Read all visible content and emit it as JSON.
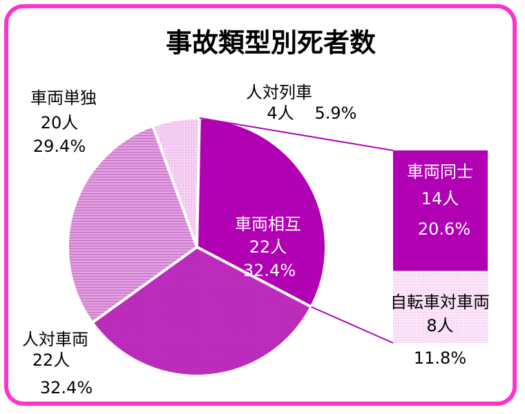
{
  "chart_data": {
    "type": "pie",
    "title": "事故類型別死者数",
    "slices": [
      {
        "name": "人対列車",
        "count": "4人",
        "percent": "5.9%",
        "value": 4
      },
      {
        "name": "車両相互",
        "count": "22人",
        "percent": "32.4%",
        "value": 22
      },
      {
        "name": "人対車両",
        "count": "22人",
        "percent": "32.4%",
        "value": 22
      },
      {
        "name": "車両単独",
        "count": "20人",
        "percent": "29.4%",
        "value": 20
      }
    ],
    "breakdown": {
      "of": "車両相互",
      "type": "stacked-bar",
      "segments": [
        {
          "name": "車両同士",
          "count": "14人",
          "percent": "20.6%",
          "value": 14
        },
        {
          "name": "自転車対車両",
          "count": "8人",
          "percent": "11.8%",
          "value": 8
        }
      ]
    },
    "colors": {
      "人対列車": "#f3c6f1",
      "車両相互": "#b100b4",
      "人対車両": "#bb22bb",
      "車両単独": "#d98cd9",
      "車両同士": "#b100b4",
      "自転車対車両": "#f8dcf6",
      "frame": "#ff33cc"
    }
  }
}
